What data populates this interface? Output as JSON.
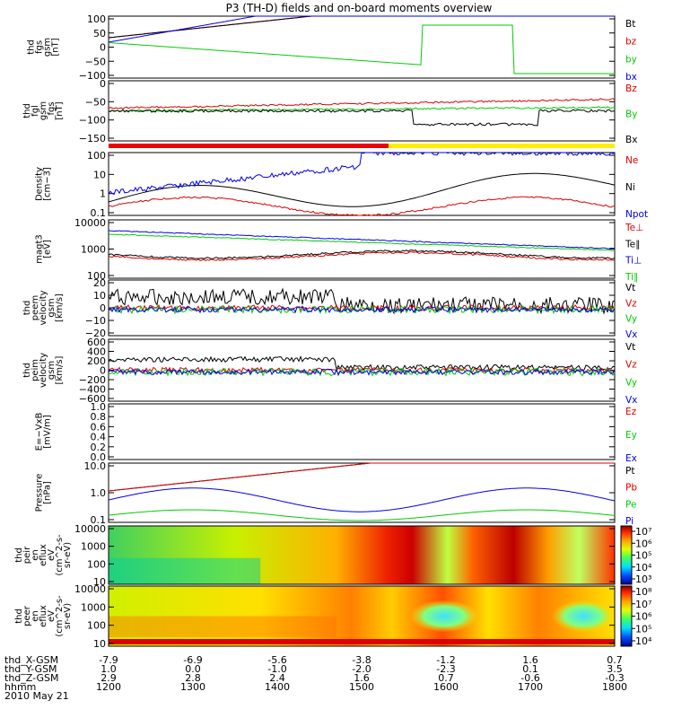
{
  "title": "P3 (TH-D) fields and on-board moments overview",
  "colors": {
    "black": "#000000",
    "red": "#dd0000",
    "green": "#00cc00",
    "blue": "#0000ee",
    "yellow": "#ffee00"
  },
  "chart_data": {
    "type": "line",
    "x_axis": {
      "row_labels": [
        "thd_X-GSM",
        "thd_Y-GSM",
        "thd_Z-GSM",
        "hhmm",
        "2010 May 21"
      ],
      "rows": [
        [
          "-7.9",
          "-6.9",
          "-5.6",
          "-3.8",
          "-1.2",
          "1.6",
          "0.7"
        ],
        [
          "1.0",
          "0.0",
          "-1.0",
          "-2.0",
          "-2.3",
          "0.1",
          "3.5"
        ],
        [
          "2.9",
          "2.8",
          "2.4",
          "1.6",
          "0.7",
          "-0.6",
          "-0.3"
        ],
        [
          "1200",
          "1300",
          "1400",
          "1500",
          "1600",
          "1700",
          "1800"
        ]
      ]
    },
    "panels": [
      {
        "id": "fgs",
        "ylabel": [
          "thd",
          "fgs",
          "gsm",
          "[nT]"
        ],
        "yticks": [
          "100",
          "50",
          "0",
          "−50",
          "−100"
        ],
        "legend": [
          {
            "name": "Bt",
            "color": "black"
          },
          {
            "name": "bz",
            "color": "red"
          },
          {
            "name": "by",
            "color": "green"
          },
          {
            "name": "bx",
            "color": "blue"
          }
        ]
      },
      {
        "id": "fgl",
        "ylabel": [
          "thd",
          "fgl",
          "gsm",
          "_fgs",
          "[nT]"
        ],
        "yticks": [
          "0",
          "−50",
          "−100",
          "−150"
        ],
        "legend": [
          {
            "name": "Bz",
            "color": "red"
          },
          {
            "name": "By",
            "color": "green"
          },
          {
            "name": "Bx",
            "color": "black"
          }
        ]
      },
      {
        "id": "density",
        "ylabel": [
          "Density",
          "[cm−3]"
        ],
        "yticks": [
          "100",
          "10",
          "1",
          "0.1"
        ],
        "legend": [
          {
            "name": "Ne",
            "color": "red"
          },
          {
            "name": "Ni",
            "color": "black"
          },
          {
            "name": "Npot",
            "color": "blue"
          }
        ]
      },
      {
        "id": "temp",
        "ylabel": [
          "magt3",
          "[eV]"
        ],
        "yticks": [
          "10000",
          "1000",
          "100"
        ],
        "legend": [
          {
            "name": "Te⊥",
            "color": "red"
          },
          {
            "name": "Te∥",
            "color": "black"
          },
          {
            "name": "Ti⊥",
            "color": "blue"
          },
          {
            "name": "Ti∥",
            "color": "green"
          }
        ]
      },
      {
        "id": "peem",
        "ylabel": [
          "thd",
          "peem",
          "velocity",
          "gsm",
          "[km/s]"
        ],
        "yticks": [
          "20",
          "10",
          "0",
          "−10",
          "−20"
        ],
        "legend": [
          {
            "name": "Vt",
            "color": "black"
          },
          {
            "name": "Vz",
            "color": "red"
          },
          {
            "name": "Vy",
            "color": "green"
          },
          {
            "name": "Vx",
            "color": "blue"
          }
        ]
      },
      {
        "id": "peim",
        "ylabel": [
          "thd",
          "peim",
          "velocity",
          "gsm",
          "[km/s]"
        ],
        "yticks": [
          "600",
          "400",
          "200",
          "0",
          "−200",
          "−400",
          "−600"
        ],
        "legend": [
          {
            "name": "Vt",
            "color": "black"
          },
          {
            "name": "Vz",
            "color": "red"
          },
          {
            "name": "Vy",
            "color": "green"
          },
          {
            "name": "Vx",
            "color": "blue"
          }
        ]
      },
      {
        "id": "efield",
        "ylabel": [
          "E=−VxB",
          "[mV/m]"
        ],
        "yticks": [
          "1.0",
          "0.8",
          "0.6",
          "0.4",
          "0.2",
          "0.0"
        ],
        "legend": [
          {
            "name": "Ez",
            "color": "red"
          },
          {
            "name": "Ey",
            "color": "green"
          },
          {
            "name": "Ex",
            "color": "blue"
          }
        ]
      },
      {
        "id": "pressure",
        "ylabel": [
          "Pressure",
          "[nPa]"
        ],
        "yticks": [
          "10.0",
          "1.0",
          "0.1"
        ],
        "legend": [
          {
            "name": "Pt",
            "color": "black"
          },
          {
            "name": "Pb",
            "color": "red"
          },
          {
            "name": "Pe",
            "color": "green"
          },
          {
            "name": "Pi",
            "color": "blue"
          }
        ]
      },
      {
        "id": "peir",
        "ylabel": [
          "thd",
          "peir",
          "en",
          "eflux",
          "eV",
          "(cm^2-s-",
          "sr-eV)"
        ],
        "yticks": [
          "10000",
          "1000",
          "100",
          "10"
        ],
        "colorbar": [
          "10⁷",
          "10⁶",
          "10⁵",
          "10⁴",
          "10³"
        ]
      },
      {
        "id": "peer",
        "ylabel": [
          "thd",
          "peer",
          "en",
          "eflux",
          "eV",
          "(cm^2-s-",
          "sr-eV)"
        ],
        "yticks": [
          "10000",
          "1000",
          "100",
          "10"
        ],
        "colorbar": [
          "10⁸",
          "10⁷",
          "10⁶",
          "10⁵",
          "10⁴"
        ]
      }
    ]
  }
}
